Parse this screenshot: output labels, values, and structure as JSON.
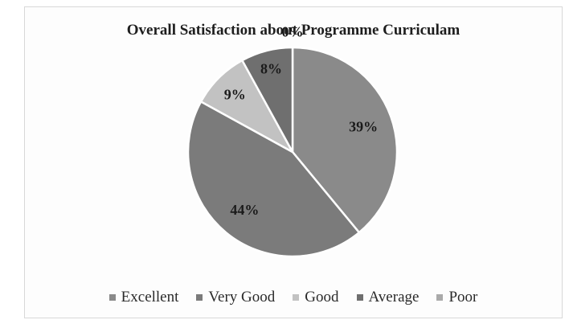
{
  "chart_data": {
    "type": "pie",
    "title": "Overall Satisfaction about Programme Curriculam",
    "categories": [
      "Excellent",
      "Very Good",
      "Good",
      "Average",
      "Poor"
    ],
    "values": [
      39,
      44,
      9,
      8,
      0
    ],
    "labels": [
      "39%",
      "44%",
      "9%",
      "8%",
      "0%"
    ],
    "colors": [
      "#8a8a8a",
      "#7b7b7b",
      "#c2c2c2",
      "#6f6f6f",
      "#aaaaaa"
    ],
    "legend": "bottom"
  }
}
